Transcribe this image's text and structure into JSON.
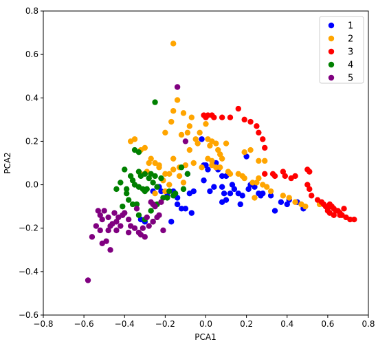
{
  "chart_data": {
    "type": "scatter",
    "xlabel": "PCA1",
    "ylabel": "PCA2",
    "xlim": [
      -0.8,
      0.8
    ],
    "ylim": [
      -0.6,
      0.8
    ],
    "xticks": [
      "−0.8",
      "−0.6",
      "−0.4",
      "−0.2",
      "0.0",
      "0.2",
      "0.4",
      "0.6",
      "0.8"
    ],
    "yticks": [
      "−0.6",
      "−0.4",
      "−0.2",
      "0.0",
      "0.2",
      "0.4",
      "0.6",
      "0.8"
    ],
    "grid": false,
    "legend_position": "top-right",
    "series": [
      {
        "name": "1",
        "color": "#0000ff",
        "points": [
          [
            -0.19,
            -0.05
          ],
          [
            -0.16,
            -0.03
          ],
          [
            -0.12,
            -0.11
          ],
          [
            -0.1,
            -0.11
          ],
          [
            -0.08,
            -0.04
          ],
          [
            -0.06,
            -0.03
          ],
          [
            -0.07,
            -0.13
          ],
          [
            -0.14,
            -0.09
          ],
          [
            -0.17,
            -0.17
          ],
          [
            -0.23,
            -0.01
          ],
          [
            -0.22,
            -0.03
          ],
          [
            -0.32,
            -0.16
          ],
          [
            -0.3,
            -0.17
          ],
          [
            -0.02,
            0.21
          ],
          [
            -0.09,
            0.05
          ],
          [
            -0.01,
            0.09
          ],
          [
            0.01,
            0.07
          ],
          [
            0.05,
            0.1
          ],
          [
            0.06,
            0.07
          ],
          [
            0.08,
            0.04
          ],
          [
            0.1,
            0.04
          ],
          [
            0.08,
            -0.01
          ],
          [
            0.09,
            -0.04
          ],
          [
            0.1,
            -0.07
          ],
          [
            0.08,
            -0.08
          ],
          [
            0.12,
            -0.04
          ],
          [
            0.13,
            0.0
          ],
          [
            0.14,
            -0.02
          ],
          [
            0.16,
            -0.04
          ],
          [
            0.17,
            -0.09
          ],
          [
            0.18,
            -0.05
          ],
          [
            0.21,
            -0.02
          ],
          [
            0.22,
            0.0
          ],
          [
            0.24,
            -0.01
          ],
          [
            0.26,
            -0.04
          ],
          [
            0.27,
            -0.05
          ],
          [
            0.28,
            -0.04
          ],
          [
            0.32,
            -0.05
          ],
          [
            0.34,
            -0.12
          ],
          [
            0.37,
            -0.08
          ],
          [
            0.4,
            -0.09
          ],
          [
            0.41,
            -0.07
          ],
          [
            0.45,
            -0.08
          ],
          [
            0.48,
            -0.1
          ],
          [
            0.48,
            -0.11
          ],
          [
            0.2,
            0.13
          ],
          [
            0.02,
            -0.03
          ],
          [
            0.04,
            -0.01
          ],
          [
            -0.26,
            -0.03
          ],
          [
            -0.14,
            -0.06
          ],
          [
            0.0,
            0.09
          ],
          [
            -0.01,
            0.02
          ]
        ]
      },
      {
        "name": "2",
        "color": "#ffa500",
        "points": [
          [
            -0.16,
            0.65
          ],
          [
            -0.14,
            0.39
          ],
          [
            -0.16,
            0.34
          ],
          [
            -0.11,
            0.33
          ],
          [
            -0.17,
            0.29
          ],
          [
            -0.12,
            0.23
          ],
          [
            -0.08,
            0.27
          ],
          [
            -0.07,
            0.31
          ],
          [
            -0.09,
            0.24
          ],
          [
            -0.05,
            0.21
          ],
          [
            -0.03,
            0.24
          ],
          [
            -0.04,
            0.19
          ],
          [
            0.0,
            0.28
          ],
          [
            0.01,
            0.21
          ],
          [
            0.02,
            0.18
          ],
          [
            0.03,
            0.2
          ],
          [
            0.05,
            0.19
          ],
          [
            0.06,
            0.16
          ],
          [
            0.07,
            0.14
          ],
          [
            0.08,
            0.12
          ],
          [
            0.01,
            0.12
          ],
          [
            0.03,
            0.09
          ],
          [
            0.05,
            0.08
          ],
          [
            0.07,
            0.08
          ],
          [
            -0.02,
            0.08
          ],
          [
            -0.06,
            0.1
          ],
          [
            -0.1,
            0.09
          ],
          [
            -0.13,
            0.08
          ],
          [
            -0.16,
            0.07
          ],
          [
            -0.18,
            0.05
          ],
          [
            -0.2,
            0.05
          ],
          [
            -0.21,
            0.02
          ],
          [
            -0.23,
            0.08
          ],
          [
            -0.25,
            0.1
          ],
          [
            -0.27,
            0.12
          ],
          [
            -0.28,
            0.1
          ],
          [
            -0.3,
            0.17
          ],
          [
            -0.32,
            0.16
          ],
          [
            -0.35,
            0.21
          ],
          [
            -0.37,
            0.2
          ],
          [
            -0.32,
            0.05
          ],
          [
            -0.29,
            0.06
          ],
          [
            -0.25,
            -0.04
          ],
          [
            -0.2,
            -0.03
          ],
          [
            -0.18,
            0.0
          ],
          [
            -0.13,
            0.04
          ],
          [
            -0.11,
            0.01
          ],
          [
            -0.16,
            0.12
          ],
          [
            -0.2,
            0.24
          ],
          [
            -0.23,
            0.09
          ],
          [
            0.11,
            0.06
          ],
          [
            0.12,
            0.05
          ],
          [
            0.16,
            0.05
          ],
          [
            0.18,
            0.04
          ],
          [
            0.19,
            0.03
          ],
          [
            0.23,
            0.01
          ],
          [
            0.25,
            0.01
          ],
          [
            0.28,
            0.0
          ],
          [
            0.3,
            -0.01
          ],
          [
            0.32,
            -0.03
          ],
          [
            0.38,
            -0.05
          ],
          [
            0.41,
            -0.06
          ],
          [
            0.44,
            -0.08
          ],
          [
            0.47,
            -0.09
          ],
          [
            0.49,
            -0.1
          ],
          [
            0.56,
            -0.09
          ],
          [
            0.1,
            0.19
          ],
          [
            0.19,
            0.15
          ],
          [
            0.22,
            0.16
          ],
          [
            0.26,
            0.11
          ],
          [
            0.29,
            0.11
          ],
          [
            0.26,
            0.03
          ],
          [
            0.24,
            -0.06
          ],
          [
            0.03,
            0.11
          ],
          [
            -0.08,
            0.16
          ]
        ]
      },
      {
        "name": "3",
        "color": "#ff0000",
        "points": [
          [
            -0.01,
            0.32
          ],
          [
            0.0,
            0.31
          ],
          [
            0.01,
            0.32
          ],
          [
            0.03,
            0.32
          ],
          [
            0.04,
            0.31
          ],
          [
            0.08,
            0.31
          ],
          [
            0.12,
            0.31
          ],
          [
            0.16,
            0.35
          ],
          [
            0.19,
            0.3
          ],
          [
            0.22,
            0.29
          ],
          [
            0.25,
            0.27
          ],
          [
            0.26,
            0.24
          ],
          [
            0.28,
            0.21
          ],
          [
            0.29,
            0.17
          ],
          [
            0.29,
            0.05
          ],
          [
            0.33,
            0.05
          ],
          [
            0.34,
            0.04
          ],
          [
            0.38,
            0.06
          ],
          [
            0.39,
            0.04
          ],
          [
            0.42,
            0.03
          ],
          [
            0.44,
            0.04
          ],
          [
            0.5,
            0.07
          ],
          [
            0.51,
            0.06
          ],
          [
            0.5,
            0.0
          ],
          [
            0.51,
            -0.02
          ],
          [
            0.52,
            -0.05
          ],
          [
            0.55,
            -0.07
          ],
          [
            0.57,
            -0.08
          ],
          [
            0.58,
            -0.09
          ],
          [
            0.59,
            -0.1
          ],
          [
            0.6,
            -0.11
          ],
          [
            0.61,
            -0.09
          ],
          [
            0.62,
            -0.1
          ],
          [
            0.63,
            -0.11
          ],
          [
            0.64,
            -0.12
          ],
          [
            0.65,
            -0.12
          ],
          [
            0.66,
            -0.14
          ],
          [
            0.67,
            -0.14
          ],
          [
            0.69,
            -0.15
          ],
          [
            0.71,
            -0.16
          ],
          [
            0.73,
            -0.16
          ],
          [
            0.68,
            -0.11
          ],
          [
            0.66,
            -0.13
          ],
          [
            0.63,
            -0.14
          ],
          [
            0.61,
            -0.13
          ],
          [
            0.6,
            -0.12
          ]
        ]
      },
      {
        "name": "4",
        "color": "#008000",
        "points": [
          [
            -0.25,
            0.38
          ],
          [
            -0.35,
            0.16
          ],
          [
            -0.33,
            0.15
          ],
          [
            -0.4,
            0.07
          ],
          [
            -0.42,
            0.01
          ],
          [
            -0.36,
            0.02
          ],
          [
            -0.35,
            0.0
          ],
          [
            -0.33,
            -0.01
          ],
          [
            -0.31,
            -0.02
          ],
          [
            -0.32,
            0.04
          ],
          [
            -0.3,
            0.05
          ],
          [
            -0.28,
            0.03
          ],
          [
            -0.26,
            0.01
          ],
          [
            -0.24,
            -0.01
          ],
          [
            -0.27,
            0.05
          ],
          [
            -0.29,
            -0.02
          ],
          [
            -0.37,
            0.04
          ],
          [
            -0.39,
            -0.02
          ],
          [
            -0.41,
            -0.1
          ],
          [
            -0.38,
            -0.07
          ],
          [
            -0.36,
            -0.09
          ],
          [
            -0.34,
            -0.09
          ],
          [
            -0.33,
            -0.14
          ],
          [
            -0.3,
            -0.16
          ],
          [
            -0.26,
            -0.17
          ],
          [
            -0.27,
            -0.12
          ],
          [
            -0.24,
            -0.09
          ],
          [
            -0.21,
            -0.06
          ],
          [
            -0.19,
            -0.06
          ],
          [
            -0.16,
            -0.05
          ],
          [
            -0.15,
            -0.04
          ],
          [
            -0.11,
            -0.02
          ],
          [
            -0.09,
            0.05
          ],
          [
            -0.12,
            0.08
          ],
          [
            -0.18,
            -0.03
          ],
          [
            -0.25,
            0.04
          ],
          [
            -0.33,
            0.06
          ],
          [
            -0.39,
            -0.04
          ],
          [
            -0.44,
            -0.02
          ],
          [
            -0.3,
            -0.03
          ],
          [
            -0.22,
            0.03
          ]
        ]
      },
      {
        "name": "5",
        "color": "#800080",
        "points": [
          [
            -0.14,
            0.45
          ],
          [
            -0.1,
            0.2
          ],
          [
            -0.53,
            -0.12
          ],
          [
            -0.52,
            -0.14
          ],
          [
            -0.51,
            -0.16
          ],
          [
            -0.54,
            -0.19
          ],
          [
            -0.52,
            -0.21
          ],
          [
            -0.56,
            -0.24
          ],
          [
            -0.51,
            -0.27
          ],
          [
            -0.48,
            -0.21
          ],
          [
            -0.47,
            -0.19
          ],
          [
            -0.46,
            -0.18
          ],
          [
            -0.44,
            -0.17
          ],
          [
            -0.42,
            -0.19
          ],
          [
            -0.45,
            -0.13
          ],
          [
            -0.43,
            -0.15
          ],
          [
            -0.48,
            -0.15
          ],
          [
            -0.5,
            -0.12
          ],
          [
            -0.41,
            -0.14
          ],
          [
            -0.4,
            -0.13
          ],
          [
            -0.38,
            -0.16
          ],
          [
            -0.37,
            -0.19
          ],
          [
            -0.35,
            -0.2
          ],
          [
            -0.33,
            -0.22
          ],
          [
            -0.31,
            -0.2
          ],
          [
            -0.28,
            -0.19
          ],
          [
            -0.26,
            -0.17
          ],
          [
            -0.24,
            -0.15
          ],
          [
            -0.23,
            -0.14
          ],
          [
            -0.26,
            -0.09
          ],
          [
            -0.27,
            -0.08
          ],
          [
            -0.29,
            -0.15
          ],
          [
            -0.3,
            -0.24
          ],
          [
            -0.32,
            -0.23
          ],
          [
            -0.38,
            -0.22
          ],
          [
            -0.44,
            -0.21
          ],
          [
            -0.49,
            -0.26
          ],
          [
            -0.47,
            -0.3
          ],
          [
            -0.58,
            -0.44
          ],
          [
            -0.21,
            -0.21
          ],
          [
            -0.25,
            -0.1
          ],
          [
            -0.22,
            -0.08
          ],
          [
            -0.34,
            -0.11
          ]
        ]
      }
    ]
  }
}
